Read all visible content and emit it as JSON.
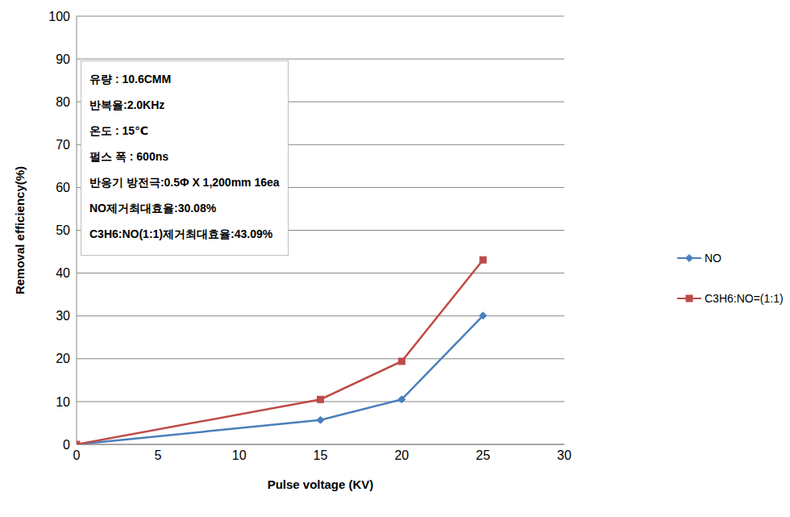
{
  "chart_data": {
    "type": "line",
    "x_label": "Pulse voltage (KV)",
    "y_label": "Removal efficiency(%)",
    "x": [
      0,
      15,
      20,
      25
    ],
    "series": [
      {
        "name": "NO",
        "color": "#4a7ebb",
        "marker": "diamond",
        "values": [
          0,
          5.7,
          10.5,
          30.08
        ]
      },
      {
        "name": "C3H6:NO=(1:1)",
        "color": "#be4b48",
        "marker": "square",
        "values": [
          0,
          10.5,
          19.4,
          43.09
        ]
      }
    ],
    "xlim": [
      0,
      30
    ],
    "ylim": [
      0,
      100
    ],
    "xticks": [
      0,
      5,
      10,
      15,
      20,
      25,
      30
    ],
    "yticks": [
      0,
      10,
      20,
      30,
      40,
      50,
      60,
      70,
      80,
      90,
      100
    ],
    "grid": true,
    "legend": "right",
    "annotation": [
      "유량 : 10.6CMM",
      "반복율:2.0KHz",
      "온도 : 15℃",
      "펄스 폭 : 600ns",
      "반응기 방전극:0.5Φ X 1,200mm 16ea",
      "NO제거최대효율:30.08%",
      "C3H6:NO(1:1)제거최대효율:43.09%"
    ]
  }
}
